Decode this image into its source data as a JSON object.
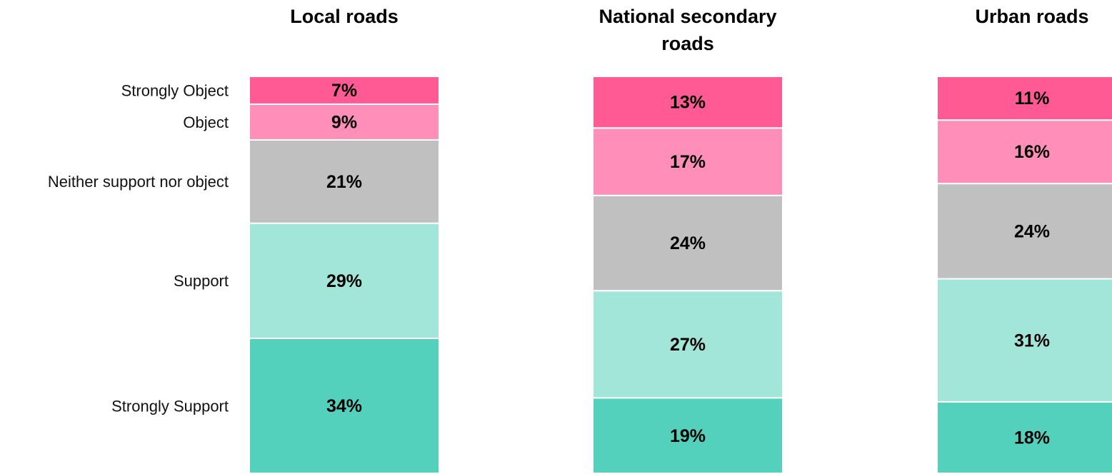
{
  "chart_data": {
    "type": "stacked-bar",
    "categories": [
      "Local roads",
      "National secondary roads",
      "Urban roads"
    ],
    "ylim": [
      0,
      100
    ],
    "series": [
      {
        "name": "Strongly Support",
        "color": "#53d1bc",
        "values": [
          34,
          19,
          18
        ],
        "value_labels": [
          "34%",
          "19%",
          "18%"
        ]
      },
      {
        "name": "Support",
        "color": "#a2e6da",
        "values": [
          29,
          27,
          31
        ],
        "value_labels": [
          "29%",
          "27%",
          "31%"
        ]
      },
      {
        "name": "Neither support nor object",
        "color": "#c0c0c0",
        "values": [
          21,
          24,
          24
        ],
        "value_labels": [
          "21%",
          "24%",
          "24%"
        ]
      },
      {
        "name": "Object",
        "color": "#ff8fb8",
        "values": [
          9,
          17,
          16
        ],
        "value_labels": [
          "9%",
          "17%",
          "16%"
        ]
      },
      {
        "name": "Strongly Object",
        "color": "#ff5a94",
        "values": [
          7,
          13,
          11
        ],
        "value_labels": [
          "7%",
          "13%",
          "11%"
        ]
      }
    ]
  }
}
